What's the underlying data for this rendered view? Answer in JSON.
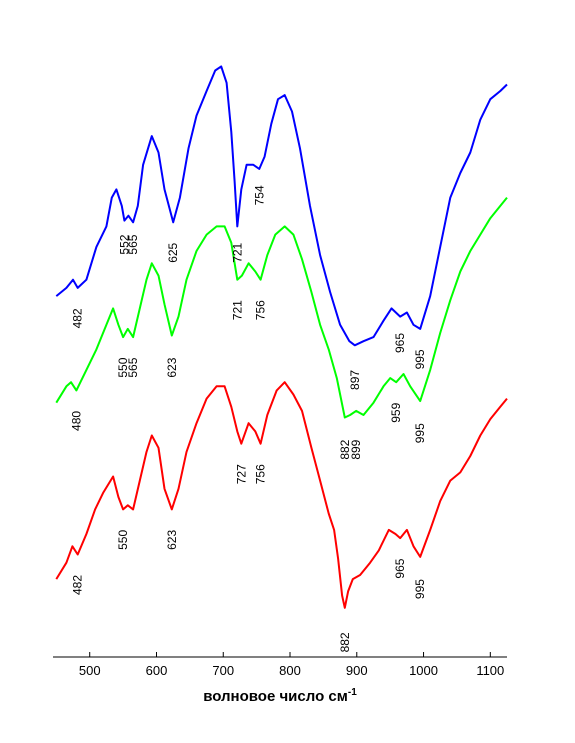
{
  "chart_data": {
    "type": "line",
    "xlabel": "волновое число см",
    "xlabel_superscript": "-1",
    "xlim": [
      445,
      1125
    ],
    "x_ticks": [
      500,
      600,
      700,
      800,
      900,
      1000,
      1100
    ],
    "ylabel": "",
    "y_ticks_shown": false,
    "grid": false,
    "series": [
      {
        "color": "#0000ff",
        "points": [
          [
            450,
            6.2
          ],
          [
            465,
            6.3
          ],
          [
            475,
            6.4
          ],
          [
            482,
            6.3
          ],
          [
            495,
            6.4
          ],
          [
            510,
            6.8
          ],
          [
            525,
            7.05
          ],
          [
            533,
            7.4
          ],
          [
            540,
            7.5
          ],
          [
            548,
            7.3
          ],
          [
            552,
            7.12
          ],
          [
            558,
            7.18
          ],
          [
            565,
            7.1
          ],
          [
            572,
            7.3
          ],
          [
            580,
            7.8
          ],
          [
            593,
            8.15
          ],
          [
            603,
            7.95
          ],
          [
            612,
            7.5
          ],
          [
            625,
            7.1
          ],
          [
            635,
            7.4
          ],
          [
            648,
            8.0
          ],
          [
            660,
            8.4
          ],
          [
            675,
            8.7
          ],
          [
            688,
            8.95
          ],
          [
            697,
            9.0
          ],
          [
            705,
            8.8
          ],
          [
            712,
            8.2
          ],
          [
            717,
            7.6
          ],
          [
            721,
            7.05
          ],
          [
            727,
            7.5
          ],
          [
            735,
            7.8
          ],
          [
            745,
            7.8
          ],
          [
            754,
            7.75
          ],
          [
            762,
            7.9
          ],
          [
            772,
            8.3
          ],
          [
            782,
            8.6
          ],
          [
            792,
            8.65
          ],
          [
            803,
            8.45
          ],
          [
            815,
            8.0
          ],
          [
            830,
            7.3
          ],
          [
            845,
            6.7
          ],
          [
            860,
            6.25
          ],
          [
            875,
            5.85
          ],
          [
            889,
            5.65
          ],
          [
            897,
            5.6
          ],
          [
            910,
            5.65
          ],
          [
            925,
            5.7
          ],
          [
            940,
            5.9
          ],
          [
            952,
            6.05
          ],
          [
            965,
            5.95
          ],
          [
            975,
            6.0
          ],
          [
            985,
            5.85
          ],
          [
            995,
            5.8
          ],
          [
            1010,
            6.2
          ],
          [
            1025,
            6.8
          ],
          [
            1040,
            7.4
          ],
          [
            1055,
            7.7
          ],
          [
            1070,
            7.95
          ],
          [
            1085,
            8.35
          ],
          [
            1100,
            8.6
          ],
          [
            1115,
            8.7
          ],
          [
            1125,
            8.78
          ]
        ]
      },
      {
        "color": "#00ff00",
        "points": [
          [
            450,
            4.9
          ],
          [
            465,
            5.1
          ],
          [
            472,
            5.15
          ],
          [
            480,
            5.05
          ],
          [
            495,
            5.3
          ],
          [
            510,
            5.55
          ],
          [
            525,
            5.85
          ],
          [
            535,
            6.05
          ],
          [
            543,
            5.85
          ],
          [
            550,
            5.7
          ],
          [
            557,
            5.8
          ],
          [
            565,
            5.7
          ],
          [
            575,
            6.05
          ],
          [
            585,
            6.4
          ],
          [
            593,
            6.6
          ],
          [
            603,
            6.45
          ],
          [
            612,
            6.1
          ],
          [
            623,
            5.72
          ],
          [
            633,
            5.95
          ],
          [
            645,
            6.4
          ],
          [
            660,
            6.75
          ],
          [
            675,
            6.95
          ],
          [
            690,
            7.05
          ],
          [
            702,
            7.05
          ],
          [
            712,
            6.85
          ],
          [
            721,
            6.4
          ],
          [
            728,
            6.45
          ],
          [
            738,
            6.6
          ],
          [
            748,
            6.5
          ],
          [
            756,
            6.4
          ],
          [
            766,
            6.7
          ],
          [
            778,
            6.95
          ],
          [
            792,
            7.05
          ],
          [
            805,
            6.95
          ],
          [
            818,
            6.65
          ],
          [
            832,
            6.25
          ],
          [
            845,
            5.85
          ],
          [
            858,
            5.55
          ],
          [
            870,
            5.2
          ],
          [
            882,
            4.72
          ],
          [
            890,
            4.75
          ],
          [
            899,
            4.8
          ],
          [
            910,
            4.75
          ],
          [
            925,
            4.9
          ],
          [
            940,
            5.1
          ],
          [
            950,
            5.2
          ],
          [
            959,
            5.15
          ],
          [
            970,
            5.25
          ],
          [
            980,
            5.1
          ],
          [
            995,
            4.92
          ],
          [
            1010,
            5.3
          ],
          [
            1025,
            5.75
          ],
          [
            1040,
            6.15
          ],
          [
            1055,
            6.5
          ],
          [
            1070,
            6.75
          ],
          [
            1085,
            6.95
          ],
          [
            1100,
            7.15
          ],
          [
            1115,
            7.3
          ],
          [
            1125,
            7.4
          ]
        ]
      },
      {
        "color": "#ff0000",
        "points": [
          [
            450,
            2.75
          ],
          [
            465,
            2.95
          ],
          [
            474,
            3.15
          ],
          [
            482,
            3.05
          ],
          [
            495,
            3.3
          ],
          [
            508,
            3.6
          ],
          [
            520,
            3.8
          ],
          [
            535,
            4.0
          ],
          [
            543,
            3.75
          ],
          [
            550,
            3.6
          ],
          [
            557,
            3.65
          ],
          [
            565,
            3.6
          ],
          [
            575,
            3.95
          ],
          [
            585,
            4.3
          ],
          [
            593,
            4.5
          ],
          [
            603,
            4.35
          ],
          [
            612,
            3.85
          ],
          [
            623,
            3.6
          ],
          [
            633,
            3.85
          ],
          [
            645,
            4.3
          ],
          [
            660,
            4.65
          ],
          [
            675,
            4.95
          ],
          [
            690,
            5.1
          ],
          [
            702,
            5.1
          ],
          [
            712,
            4.85
          ],
          [
            721,
            4.55
          ],
          [
            727,
            4.4
          ],
          [
            738,
            4.65
          ],
          [
            748,
            4.55
          ],
          [
            756,
            4.4
          ],
          [
            766,
            4.75
          ],
          [
            780,
            5.05
          ],
          [
            792,
            5.15
          ],
          [
            805,
            5.0
          ],
          [
            818,
            4.8
          ],
          [
            832,
            4.35
          ],
          [
            845,
            3.95
          ],
          [
            858,
            3.55
          ],
          [
            866,
            3.35
          ],
          [
            872,
            3.0
          ],
          [
            878,
            2.55
          ],
          [
            882,
            2.4
          ],
          [
            887,
            2.6
          ],
          [
            894,
            2.75
          ],
          [
            905,
            2.8
          ],
          [
            920,
            2.95
          ],
          [
            933,
            3.1
          ],
          [
            948,
            3.35
          ],
          [
            958,
            3.3
          ],
          [
            965,
            3.25
          ],
          [
            975,
            3.35
          ],
          [
            985,
            3.15
          ],
          [
            995,
            3.02
          ],
          [
            1010,
            3.35
          ],
          [
            1025,
            3.7
          ],
          [
            1040,
            3.95
          ],
          [
            1055,
            4.05
          ],
          [
            1070,
            4.25
          ],
          [
            1085,
            4.5
          ],
          [
            1100,
            4.7
          ],
          [
            1115,
            4.85
          ],
          [
            1125,
            4.95
          ]
        ]
      }
    ],
    "annotations": [
      {
        "text": "482",
        "x": 482,
        "y": 6.05,
        "color_series": 0
      },
      {
        "text": "552",
        "x": 552,
        "y": 6.95,
        "color_series": 0
      },
      {
        "text": "565",
        "x": 565,
        "y": 6.95,
        "color_series": 0
      },
      {
        "text": "625",
        "x": 625,
        "y": 6.85,
        "color_series": 0
      },
      {
        "text": "721",
        "x": 721,
        "y": 6.85,
        "color_series": 0
      },
      {
        "text": "754",
        "x": 754,
        "y": 7.55,
        "color_series": 0
      },
      {
        "text": "897",
        "x": 897,
        "y": 5.3,
        "color_series": 0
      },
      {
        "text": "965",
        "x": 965,
        "y": 5.75,
        "color_series": 0
      },
      {
        "text": "995",
        "x": 995,
        "y": 5.55,
        "color_series": 0
      },
      {
        "text": "480",
        "x": 480,
        "y": 4.8,
        "color_series": 1
      },
      {
        "text": "550",
        "x": 550,
        "y": 5.45,
        "color_series": 1
      },
      {
        "text": "565",
        "x": 565,
        "y": 5.45,
        "color_series": 1
      },
      {
        "text": "623",
        "x": 623,
        "y": 5.45,
        "color_series": 1
      },
      {
        "text": "721",
        "x": 721,
        "y": 6.15,
        "color_series": 1
      },
      {
        "text": "756",
        "x": 756,
        "y": 6.15,
        "color_series": 1
      },
      {
        "text": "959",
        "x": 959,
        "y": 4.9,
        "color_series": 1
      },
      {
        "text": "995",
        "x": 995,
        "y": 4.65,
        "color_series": 1
      },
      {
        "text": "882",
        "x": 882,
        "y": 4.45,
        "color_series": 1
      },
      {
        "text": "899",
        "x": 899,
        "y": 4.45,
        "color_series": 1
      },
      {
        "text": "727",
        "x": 727,
        "y": 4.15,
        "color_series": 2
      },
      {
        "text": "756",
        "x": 756,
        "y": 4.15,
        "color_series": 2
      },
      {
        "text": "550",
        "x": 550,
        "y": 3.35,
        "color_series": 2
      },
      {
        "text": "623",
        "x": 623,
        "y": 3.35,
        "color_series": 2
      },
      {
        "text": "482",
        "x": 482,
        "y": 2.8,
        "color_series": 2
      },
      {
        "text": "965",
        "x": 965,
        "y": 3.0,
        "color_series": 2
      },
      {
        "text": "995",
        "x": 995,
        "y": 2.75,
        "color_series": 2
      },
      {
        "text": "882",
        "x": 882,
        "y": 2.1,
        "color_series": 2
      }
    ]
  }
}
